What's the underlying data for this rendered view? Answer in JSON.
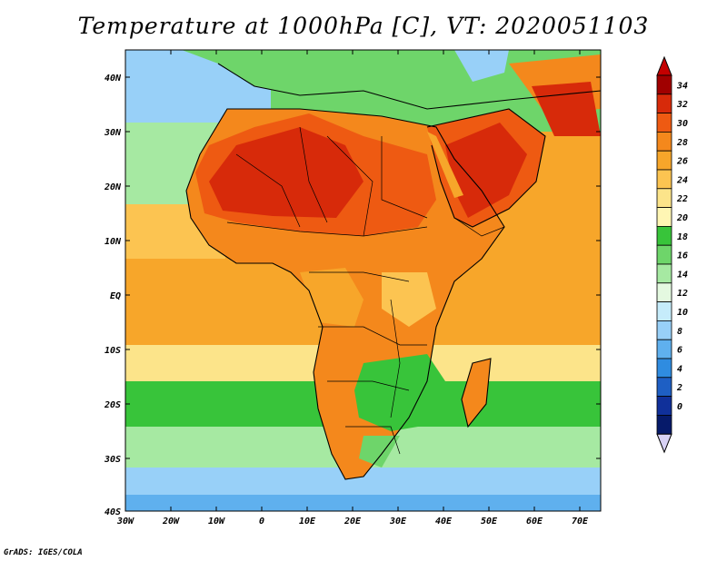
{
  "title": "Temperature at 1000hPa [C], VT: 2020051103",
  "credit": "GrADS: IGES/COLA",
  "latitude_labels": [
    "40N",
    "30N",
    "20N",
    "10N",
    "EQ",
    "10S",
    "20S",
    "30S",
    "40S"
  ],
  "longitude_labels": [
    "30W",
    "20W",
    "10W",
    "0",
    "10E",
    "20E",
    "30E",
    "40E",
    "50E",
    "60E",
    "70E"
  ],
  "colorbar": {
    "labels": [
      "34",
      "32",
      "30",
      "28",
      "26",
      "24",
      "22",
      "20",
      "18",
      "16",
      "14",
      "12",
      "10",
      "8",
      "6",
      "4",
      "2",
      "0"
    ],
    "colors": [
      "#a00000",
      "#d72a0a",
      "#ee5a12",
      "#f4881c",
      "#f7a62a",
      "#fcc451",
      "#fce48a",
      "#fff6b4",
      "#38c43a",
      "#6ed56a",
      "#a6e9a2",
      "#e4f9e0",
      "#c6ecfb",
      "#98d0f8",
      "#5fb0ee",
      "#2f8ce0",
      "#1e5fc4",
      "#10309a",
      "#061a6a"
    ],
    "below_color": "#d8d2f5",
    "above_color": "#c40000"
  },
  "palette": {
    "ocean_cool": "#6db8ef",
    "ocean_mild": "#a6e9a2",
    "ocean_warm": "#f7a62a",
    "land_hot": "#d72a0a",
    "land_warm": "#f4881c",
    "land_green": "#38c43a"
  }
}
